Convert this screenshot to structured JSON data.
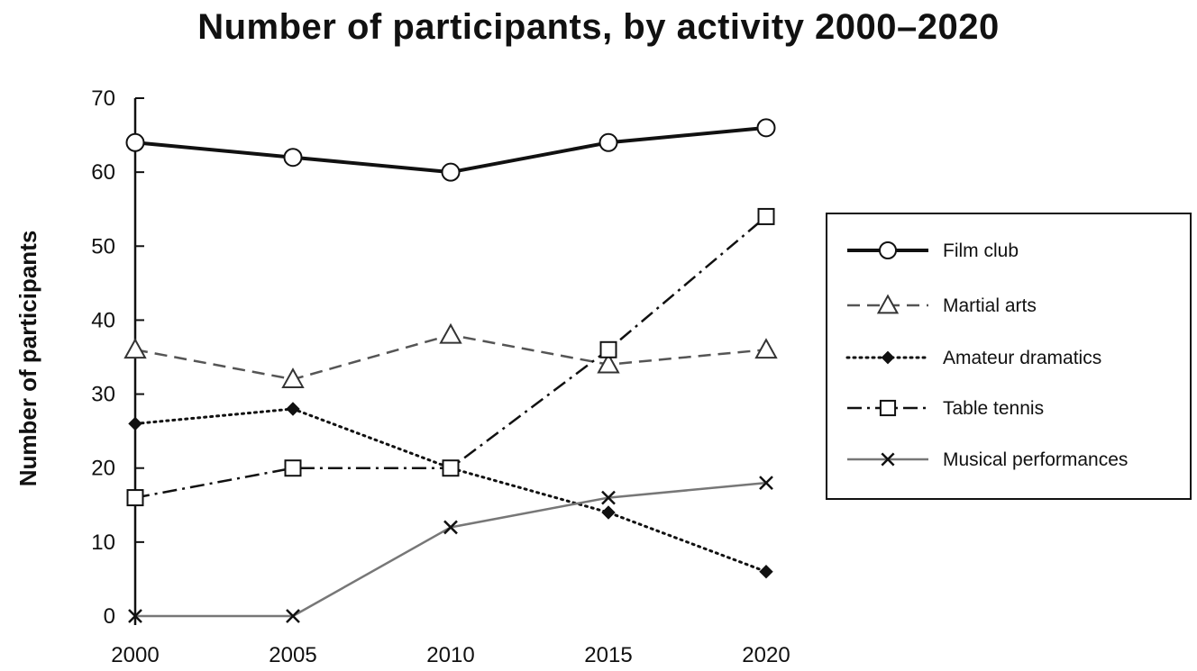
{
  "chart_data": {
    "type": "line",
    "title": "Number of participants, by activity 2000–2020",
    "xlabel": "",
    "ylabel": "Number of participants",
    "x": [
      "2000",
      "2005",
      "2010",
      "2015",
      "2020"
    ],
    "ylim": [
      0,
      70
    ],
    "yticks": [
      "0",
      "10",
      "20",
      "30",
      "40",
      "50",
      "60",
      "70"
    ],
    "grid": false,
    "legend_position": "right",
    "series": [
      {
        "name": "Film club",
        "values": [
          64,
          62,
          60,
          64,
          66
        ],
        "marker": "circle",
        "style": "solid-bold",
        "color": "#111111"
      },
      {
        "name": "Martial arts",
        "values": [
          36,
          32,
          38,
          34,
          36
        ],
        "marker": "triangle",
        "style": "dashed",
        "color": "#555555"
      },
      {
        "name": "Amateur dramatics",
        "values": [
          26,
          28,
          20,
          14,
          6
        ],
        "marker": "diamond",
        "style": "dotted",
        "color": "#111111"
      },
      {
        "name": "Table tennis",
        "values": [
          16,
          20,
          20,
          36,
          54
        ],
        "marker": "square",
        "style": "dash-dot",
        "color": "#111111"
      },
      {
        "name": "Musical performances",
        "values": [
          0,
          0,
          12,
          16,
          18
        ],
        "marker": "cross",
        "style": "solid-grey",
        "color": "#777777"
      }
    ]
  }
}
